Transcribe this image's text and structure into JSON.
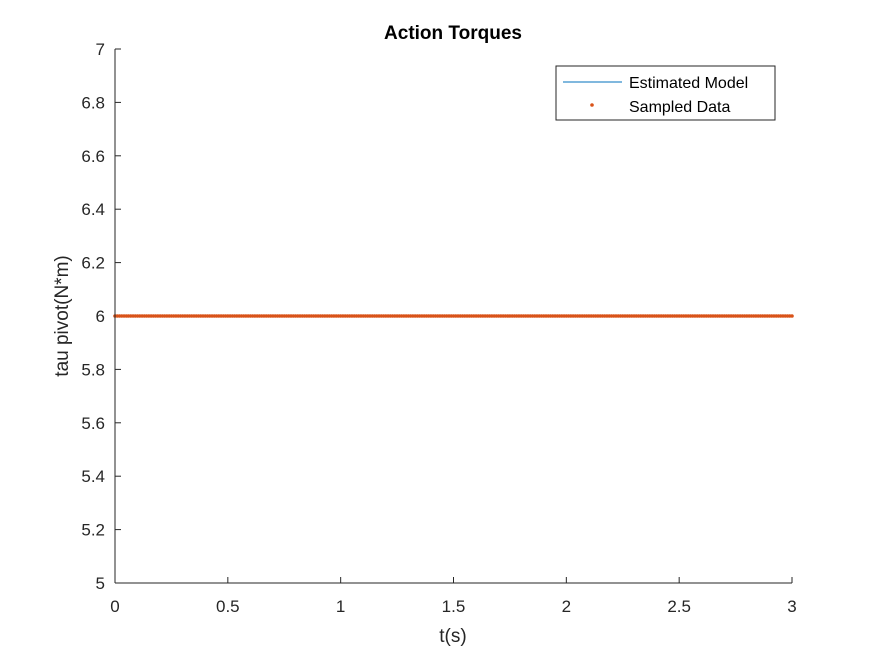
{
  "chart_data": {
    "type": "line",
    "title": "Action Torques",
    "xlabel": "t(s)",
    "ylabel": "tau pivot(N*m)",
    "xlim": [
      0,
      3
    ],
    "ylim": [
      5,
      7
    ],
    "xticks": [
      0,
      0.5,
      1,
      1.5,
      2,
      2.5,
      3
    ],
    "xtick_labels": [
      "0",
      "0.5",
      "1",
      "1.5",
      "2",
      "2.5",
      "3"
    ],
    "yticks": [
      5,
      5.2,
      5.4,
      5.6,
      5.8,
      6,
      6.2,
      6.4,
      6.6,
      6.8,
      7
    ],
    "ytick_labels": [
      "5",
      "5.2",
      "5.4",
      "5.6",
      "5.8",
      "6",
      "6.2",
      "6.4",
      "6.6",
      "6.8",
      "7"
    ],
    "grid": false,
    "legend_position": "top-right",
    "series": [
      {
        "name": "Estimated Model",
        "style": "line",
        "color": "#0072BD",
        "x": [
          0,
          3
        ],
        "y": [
          6,
          6
        ]
      },
      {
        "name": "Sampled Data",
        "style": "markers",
        "color": "#D95319",
        "x_start": 0,
        "x_end": 3,
        "x_step": 0.01,
        "y_constant": 6
      }
    ]
  }
}
